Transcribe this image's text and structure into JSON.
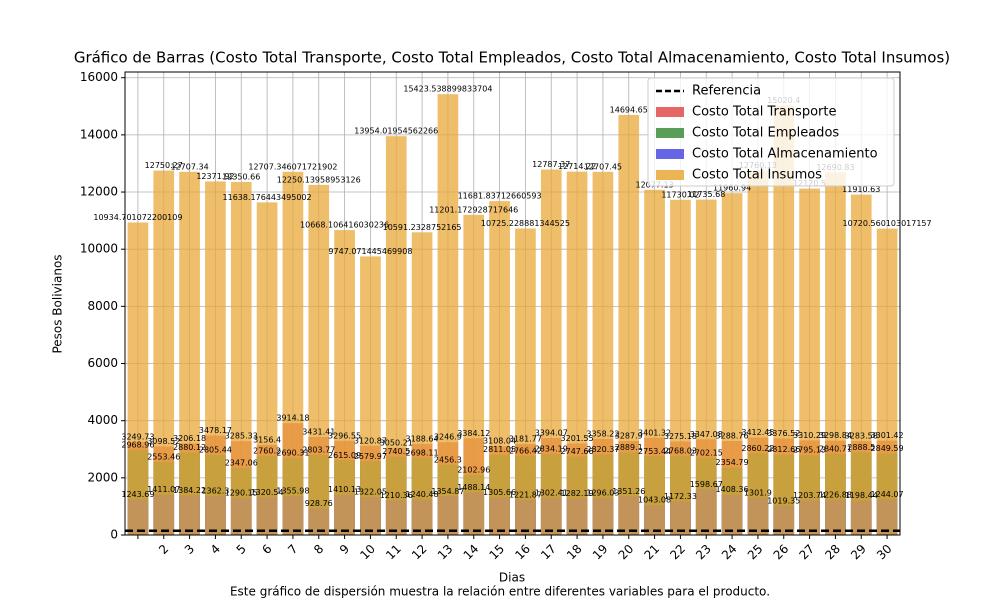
{
  "chart_data": {
    "type": "bar",
    "title": "Gráfico de Barras (Costo Total Transporte, Costo Total Empleados, Costo Total Almacenamiento, Costo Total Insumos)",
    "x_label": "Dias",
    "y_label": "Pesos Bolivianos",
    "caption": "Este gráfico de dispersión muestra la relación entre diferentes variables para el producto.",
    "categories": [
      null,
      "2",
      "3",
      "4",
      "5",
      "6",
      "7",
      "8",
      "9",
      "10",
      "11",
      "12",
      "13",
      "14",
      "15",
      "16",
      "17",
      "18",
      "19",
      "20",
      "21",
      "22",
      "23",
      "24",
      "25",
      "26",
      "27",
      "28",
      "29",
      "30"
    ],
    "series": [
      {
        "name": "Costo Total Transporte",
        "color": "#e24a4a",
        "values": [
          3249.73,
          3098.52,
          3206.18,
          3478.17,
          3285.33,
          3156.4,
          3914.18,
          3431.41,
          3296.55,
          3120.87,
          3050.21,
          3188.64,
          3246.9,
          3384.12,
          3108.04,
          3181.77,
          3394.07,
          3201.55,
          3358.22,
          3287.9,
          3401.32,
          3275.18,
          3347.08,
          3288.76,
          3412.45,
          3376.52,
          3310.29,
          3298.84,
          3283.58,
          3301.42
        ]
      },
      {
        "name": "Costo Total Empleados",
        "color": "#3c8c3c",
        "values": [
          2968.96,
          2553.46,
          2880.12,
          2805.44,
          2347.06,
          2760.2,
          2690.31,
          2803.77,
          2615.09,
          2579.97,
          2740.5,
          2698.11,
          2456.3,
          2102.96,
          2811.05,
          2766.42,
          2834.19,
          2747.66,
          2820.37,
          2889.1,
          2753.44,
          2768.03,
          2702.15,
          2354.79,
          2860.22,
          2812.66,
          2795.13,
          2840.71,
          2888.5,
          2849.59
        ]
      },
      {
        "name": "Costo Total Almacenamiento",
        "color": "#4a4ae2",
        "values": [
          1243.69,
          1411.07,
          1384.22,
          1362.3,
          1290.15,
          1320.54,
          1355.98,
          928.76,
          1410.13,
          1322.05,
          1210.36,
          1240.48,
          1354.87,
          1488.14,
          1305.66,
          1221.87,
          1302.41,
          1282.19,
          1296.03,
          1351.26,
          1043.08,
          1172.33,
          1598.67,
          1408.36,
          1301.9,
          1019.35,
          1203.74,
          1226.88,
          1198.44,
          1244.07
        ]
      },
      {
        "name": "Costo Total Insumos",
        "color": "#e8a838",
        "values": [
          10934.701072200109,
          12750.27,
          12707.34,
          12371.92,
          12350.66,
          11638.176443495002,
          12707.346071721902,
          12250.13958953126,
          10668.106416030236,
          9747.071445469908,
          13954.01954562266,
          10591.2328752165,
          15423.538899833704,
          11201.172928717646,
          11681.83712660593,
          10725.228881344525,
          12787.37,
          12714.22,
          12707.45,
          14694.65,
          12077.13,
          11730.02,
          11735.68,
          11960.94,
          12760.13,
          15020.4,
          12120.5,
          12690.83,
          11910.63,
          10720.560103017157
        ]
      }
    ],
    "reference": {
      "name": "Referencia",
      "value": 150
    },
    "ylim": [
      0,
      16200
    ],
    "yticks": [
      0,
      2000,
      4000,
      6000,
      8000,
      10000,
      12000,
      14000,
      16000
    ],
    "grid": true,
    "legend": "upper right"
  }
}
